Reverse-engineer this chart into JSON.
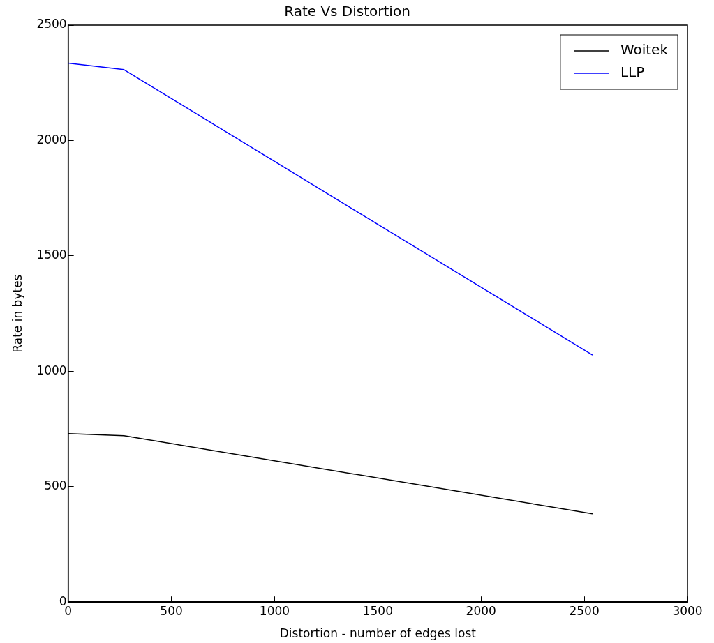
{
  "chart_data": {
    "type": "line",
    "title": "Rate Vs Distortion",
    "xlabel": "Distortion - number of edges lost",
    "ylabel": "Rate in bytes",
    "x": [
      0,
      270,
      2540
    ],
    "series": [
      {
        "name": "Woitek",
        "color": "#000000",
        "values": [
          730,
          721,
          382
        ]
      },
      {
        "name": "LLP",
        "color": "#0000ff",
        "values": [
          2335,
          2307,
          1070
        ]
      }
    ],
    "xlim": [
      0,
      3000
    ],
    "xticks": [
      0,
      500,
      1000,
      1500,
      2000,
      2500,
      3000
    ],
    "ylim": [
      0,
      2500
    ],
    "yticks": [
      0,
      500,
      1000,
      1500,
      2000,
      2500
    ],
    "legend": "top right",
    "grid": false,
    "marker": "none",
    "line_style": "solid"
  }
}
